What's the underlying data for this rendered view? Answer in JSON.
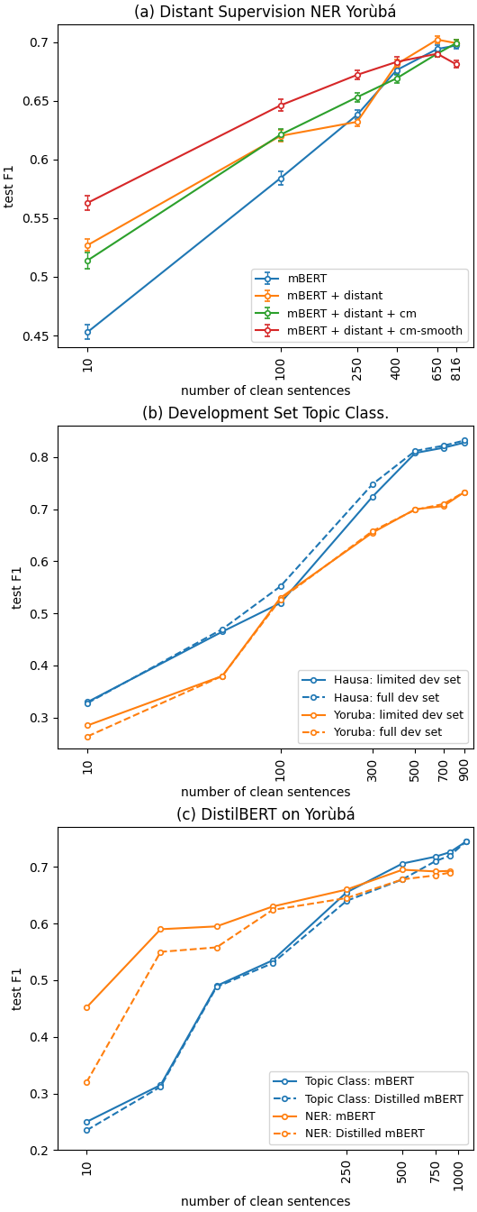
{
  "chart_data": [
    {
      "type": "line",
      "title": "(a) Distant Supervision NER Yorùbá",
      "x_label": "number of clean sentences",
      "y_label": "test F1",
      "log": "x",
      "legend": "lower right",
      "grid": false,
      "xlim": [
        7,
        1000
      ],
      "xticks": [
        10,
        100,
        250,
        400,
        650,
        816
      ],
      "ylim": [
        0.44,
        0.715
      ],
      "yticks": [
        0.45,
        0.5,
        0.55,
        0.6,
        0.65,
        0.7
      ],
      "series": [
        {
          "name": "mBERT",
          "color": "#1f77b4",
          "line_style": "solid",
          "marker": "circle",
          "x": [
            10,
            100,
            250,
            400,
            650,
            816
          ],
          "values": [
            0.453,
            0.584,
            0.638,
            0.676,
            0.694,
            0.697
          ],
          "yerr": [
            0.006,
            0.006,
            0.004,
            0.004,
            0.003,
            0.003
          ]
        },
        {
          "name": "mBERT + distant",
          "color": "#ff7f0e",
          "line_style": "solid",
          "marker": "circle",
          "x": [
            10,
            100,
            250,
            400,
            650,
            816
          ],
          "values": [
            0.527,
            0.62,
            0.632,
            0.681,
            0.702,
            0.699
          ],
          "yerr": [
            0.005,
            0.005,
            0.004,
            0.004,
            0.003,
            0.003
          ]
        },
        {
          "name": "mBERT + distant + cm",
          "color": "#2ca02c",
          "line_style": "solid",
          "marker": "circle",
          "x": [
            10,
            100,
            250,
            400,
            650,
            816
          ],
          "values": [
            0.514,
            0.621,
            0.653,
            0.669,
            0.69,
            0.699
          ],
          "yerr": [
            0.007,
            0.005,
            0.004,
            0.004,
            0.003,
            0.003
          ]
        },
        {
          "name": "mBERT + distant + cm-smooth",
          "color": "#d62728",
          "line_style": "solid",
          "marker": "circle",
          "x": [
            10,
            100,
            250,
            400,
            650,
            816
          ],
          "values": [
            0.563,
            0.646,
            0.672,
            0.683,
            0.69,
            0.681
          ],
          "yerr": [
            0.006,
            0.005,
            0.004,
            0.004,
            0.003,
            0.003
          ]
        }
      ]
    },
    {
      "type": "line",
      "title": "(b) Development Set Topic Class.",
      "x_label": "number of clean sentences",
      "y_label": "test F1",
      "log": "x",
      "legend": "lower right",
      "grid": false,
      "xlim": [
        7,
        1000
      ],
      "xticks": [
        10,
        100,
        300,
        500,
        700,
        900
      ],
      "ylim": [
        0.24,
        0.86
      ],
      "yticks": [
        0.3,
        0.4,
        0.5,
        0.6,
        0.7,
        0.8
      ],
      "series": [
        {
          "name": "Hausa: limited dev set",
          "color": "#1f77b4",
          "line_style": "solid",
          "marker": "circle",
          "x": [
            10,
            50,
            100,
            300,
            500,
            700,
            900
          ],
          "values": [
            0.33,
            0.465,
            0.52,
            0.724,
            0.808,
            0.818,
            0.828
          ]
        },
        {
          "name": "Hausa: full dev set",
          "color": "#1f77b4",
          "line_style": "dashed",
          "marker": "circle",
          "x": [
            10,
            50,
            100,
            300,
            500,
            700,
            900
          ],
          "values": [
            0.328,
            0.47,
            0.552,
            0.748,
            0.812,
            0.822,
            0.832
          ]
        },
        {
          "name": "Yoruba: limited dev set",
          "color": "#ff7f0e",
          "line_style": "solid",
          "marker": "circle",
          "x": [
            10,
            50,
            100,
            300,
            500,
            700,
            900
          ],
          "values": [
            0.285,
            0.38,
            0.53,
            0.655,
            0.7,
            0.706,
            0.733
          ]
        },
        {
          "name": "Yoruba: full dev set",
          "color": "#ff7f0e",
          "line_style": "dashed",
          "marker": "circle",
          "x": [
            10,
            50,
            100,
            300,
            500,
            700,
            900
          ],
          "values": [
            0.264,
            0.38,
            0.527,
            0.658,
            0.699,
            0.71,
            0.733
          ]
        }
      ]
    },
    {
      "type": "line",
      "title": "(c) DistilBERT on Yorùbá",
      "x_label": "number of clean sentences",
      "y_label": "test F1",
      "log": "x",
      "legend": "lower right",
      "grid": false,
      "xlim": [
        7,
        1200
      ],
      "xticks": [
        10,
        250,
        500,
        750,
        1000
      ],
      "ylim": [
        0.2,
        0.77
      ],
      "yticks": [
        0.2,
        0.3,
        0.4,
        0.5,
        0.6,
        0.7
      ],
      "series": [
        {
          "name": "Topic Class: mBERT",
          "color": "#1f77b4",
          "line_style": "solid",
          "marker": "circle",
          "x": [
            10,
            25,
            50,
            100,
            250,
            500,
            750,
            900,
            1100
          ],
          "values": [
            0.25,
            0.315,
            0.49,
            0.535,
            0.655,
            0.706,
            0.718,
            0.726,
            0.745
          ]
        },
        {
          "name": "Topic Class: Distilled mBERT",
          "color": "#1f77b4",
          "line_style": "dashed",
          "marker": "circle",
          "x": [
            10,
            25,
            50,
            100,
            250,
            500,
            750,
            900,
            1100
          ],
          "values": [
            0.235,
            0.312,
            0.488,
            0.53,
            0.64,
            0.678,
            0.71,
            0.72,
            0.745
          ]
        },
        {
          "name": "NER: mBERT",
          "color": "#ff7f0e",
          "line_style": "solid",
          "marker": "circle",
          "x": [
            10,
            25,
            50,
            100,
            250,
            500,
            750,
            900
          ],
          "values": [
            0.452,
            0.59,
            0.595,
            0.63,
            0.66,
            0.695,
            0.692,
            0.693
          ]
        },
        {
          "name": "NER: Distilled mBERT",
          "color": "#ff7f0e",
          "line_style": "dashed",
          "marker": "circle",
          "x": [
            10,
            25,
            50,
            100,
            250,
            500,
            750,
            900
          ],
          "values": [
            0.32,
            0.55,
            0.558,
            0.624,
            0.645,
            0.678,
            0.685,
            0.69
          ]
        }
      ]
    }
  ]
}
